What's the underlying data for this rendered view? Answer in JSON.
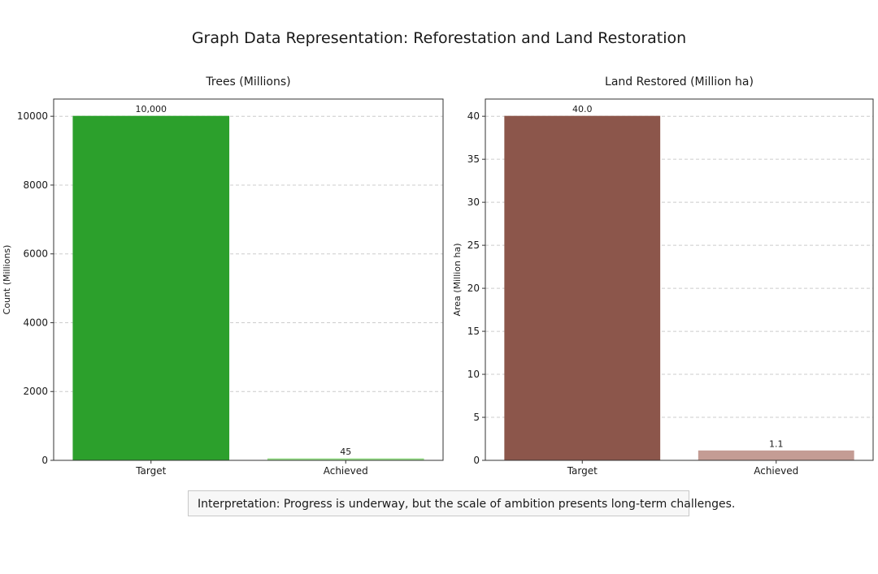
{
  "title": "Graph Data Representation: Reforestation and Land Restoration",
  "interpretation": "Interpretation: Progress is underway, but the scale of ambition presents long-term challenges.",
  "chart_data": [
    {
      "type": "bar",
      "title": "Trees (Millions)",
      "ylabel": "Count (Millions)",
      "xlabel": "",
      "categories": [
        "Target",
        "Achieved"
      ],
      "values": [
        10000,
        45
      ],
      "data_labels": [
        "10,000",
        "45"
      ],
      "colors": [
        "#2ca02c",
        "#98df8a"
      ],
      "ylim": [
        0,
        10500
      ],
      "yticks": [
        0,
        2000,
        4000,
        6000,
        8000,
        10000
      ],
      "ytick_labels": [
        "0",
        "2000",
        "4000",
        "6000",
        "8000",
        "10000"
      ],
      "grid": true
    },
    {
      "type": "bar",
      "title": "Land Restored (Million ha)",
      "ylabel": "Area (Million ha)",
      "xlabel": "",
      "categories": [
        "Target",
        "Achieved"
      ],
      "values": [
        40.0,
        1.1
      ],
      "data_labels": [
        "40.0",
        "1.1"
      ],
      "colors": [
        "#8c564b",
        "#c49c94"
      ],
      "ylim": [
        0,
        42
      ],
      "yticks": [
        0,
        5,
        10,
        15,
        20,
        25,
        30,
        35,
        40
      ],
      "ytick_labels": [
        "0",
        "5",
        "10",
        "15",
        "20",
        "25",
        "30",
        "35",
        "40"
      ],
      "grid": true
    }
  ]
}
